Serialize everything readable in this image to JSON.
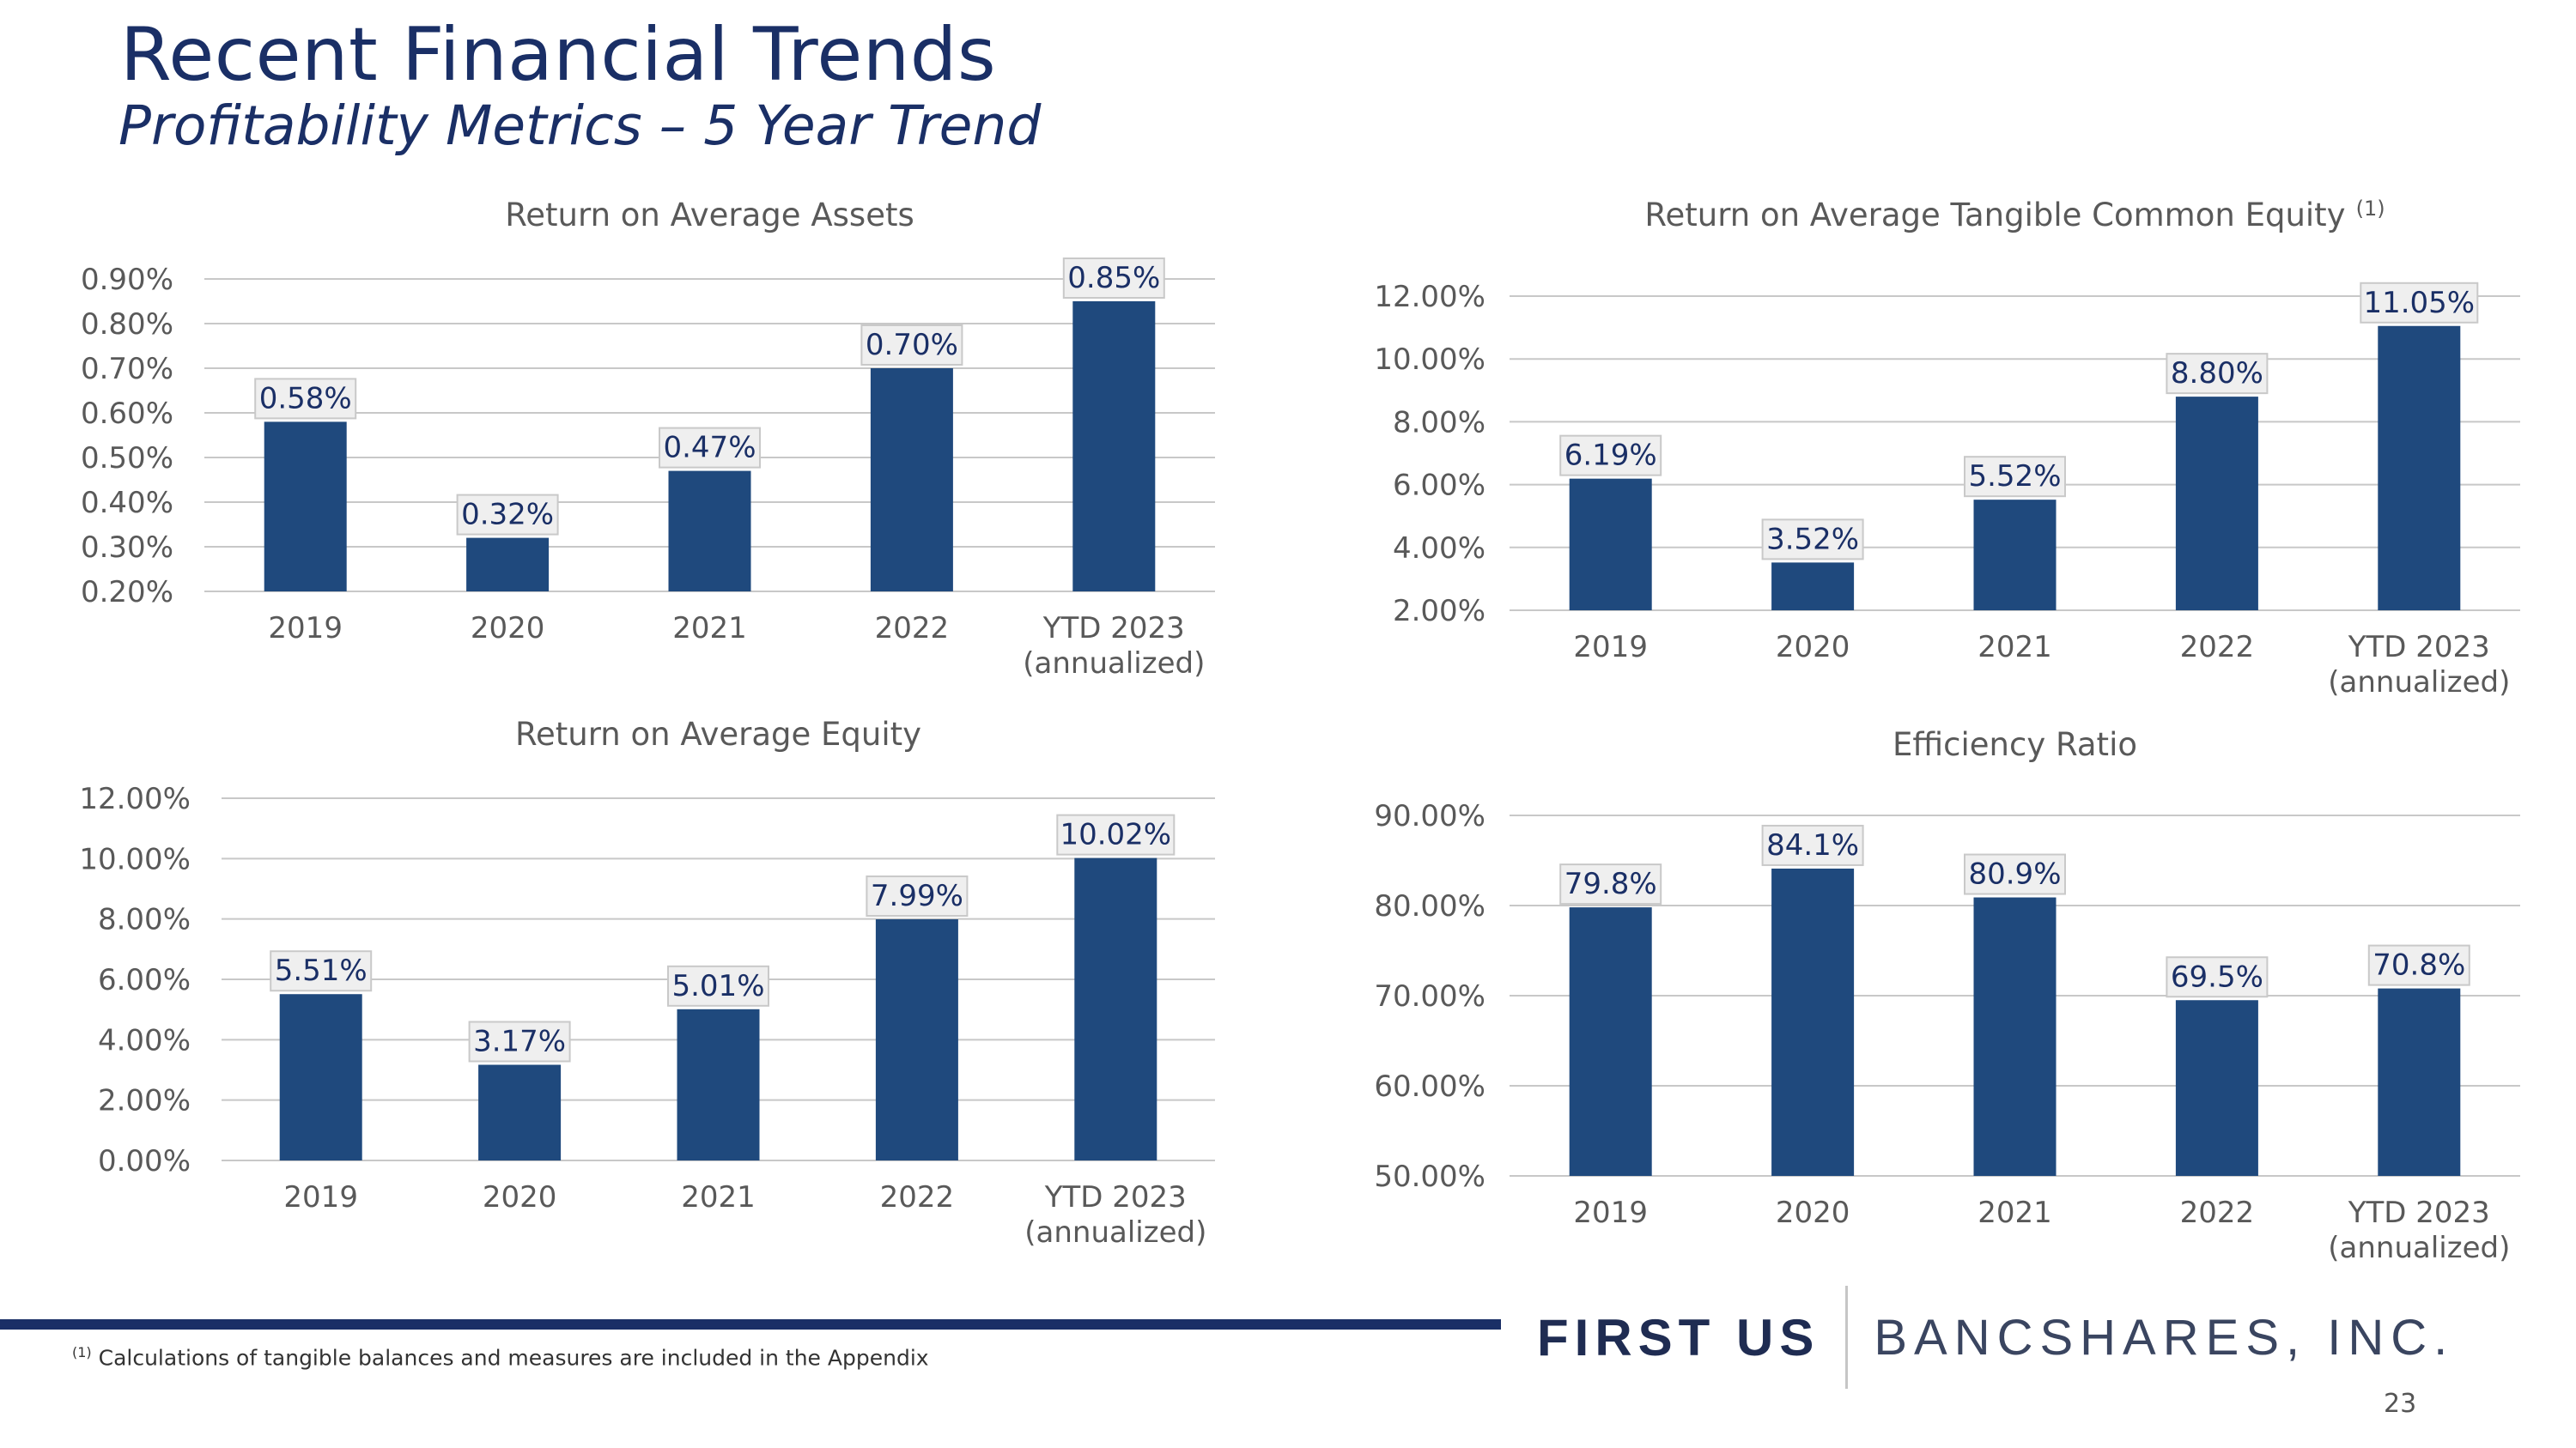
{
  "header": {
    "title": "Recent Financial Trends",
    "subtitle": "Profitability Metrics – 5 Year Trend"
  },
  "colors": {
    "bar": "#1f497d",
    "grid": "#c8c8c8",
    "axis_text": "#595959",
    "title_text": "#595959",
    "label_bg": "#efefef",
    "label_border": "#c9c9c9",
    "label_text": "#1a2f66"
  },
  "chart_data": [
    {
      "type": "bar",
      "title": "Return on Average Assets",
      "categories": [
        "2019",
        "2020",
        "2021",
        "2022",
        "YTD 2023\n(annualized)"
      ],
      "values": [
        0.58,
        0.32,
        0.47,
        0.7,
        0.85
      ],
      "labels": [
        "0.58%",
        "0.32%",
        "0.47%",
        "0.70%",
        "0.85%"
      ],
      "ylim": [
        0.2,
        0.9
      ],
      "yticks": [
        0.2,
        0.3,
        0.4,
        0.5,
        0.6,
        0.7,
        0.8,
        0.9
      ],
      "ytick_labels": [
        "0.20%",
        "0.30%",
        "0.40%",
        "0.50%",
        "0.60%",
        "0.70%",
        "0.80%",
        "0.90%"
      ],
      "xlabel": "",
      "ylabel": "",
      "grid": true
    },
    {
      "type": "bar",
      "title": "Return on Average Tangible Common Equity",
      "title_sup": "(1)",
      "categories": [
        "2019",
        "2020",
        "2021",
        "2022",
        "YTD 2023\n(annualized)"
      ],
      "values": [
        6.19,
        3.52,
        5.52,
        8.8,
        11.05
      ],
      "labels": [
        "6.19%",
        "3.52%",
        "5.52%",
        "8.80%",
        "11.05%"
      ],
      "ylim": [
        2.0,
        12.0
      ],
      "yticks": [
        2,
        4,
        6,
        8,
        10,
        12
      ],
      "ytick_labels": [
        "2.00%",
        "4.00%",
        "6.00%",
        "8.00%",
        "10.00%",
        "12.00%"
      ],
      "xlabel": "",
      "ylabel": "",
      "grid": true
    },
    {
      "type": "bar",
      "title": "Return on Average Equity",
      "categories": [
        "2019",
        "2020",
        "2021",
        "2022",
        "YTD 2023\n(annualized)"
      ],
      "values": [
        5.51,
        3.17,
        5.01,
        7.99,
        10.02
      ],
      "labels": [
        "5.51%",
        "3.17%",
        "5.01%",
        "7.99%",
        "10.02%"
      ],
      "ylim": [
        0.0,
        12.0
      ],
      "yticks": [
        0,
        2,
        4,
        6,
        8,
        10,
        12
      ],
      "ytick_labels": [
        "0.00%",
        "2.00%",
        "4.00%",
        "6.00%",
        "8.00%",
        "10.00%",
        "12.00%"
      ],
      "xlabel": "",
      "ylabel": "",
      "grid": true
    },
    {
      "type": "bar",
      "title": "Efficiency Ratio",
      "categories": [
        "2019",
        "2020",
        "2021",
        "2022",
        "YTD 2023\n(annualized)"
      ],
      "values": [
        79.8,
        84.1,
        80.9,
        69.5,
        70.8
      ],
      "labels": [
        "79.8%",
        "84.1%",
        "80.9%",
        "69.5%",
        "70.8%"
      ],
      "ylim": [
        50.0,
        90.0
      ],
      "yticks": [
        50,
        60,
        70,
        80,
        90
      ],
      "ytick_labels": [
        "50.00%",
        "60.00%",
        "70.00%",
        "80.00%",
        "90.00%"
      ],
      "xlabel": "",
      "ylabel": "",
      "grid": true
    }
  ],
  "footer": {
    "brand_first": "FIRST US",
    "brand_rest": "BANCSHARES, INC.",
    "footnote_marker": "(1)",
    "footnote_text": " Calculations of tangible balances and measures are included in the Appendix",
    "page_number": "23"
  }
}
